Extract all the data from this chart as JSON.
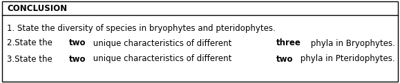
{
  "title": "CONCLUSION",
  "line1_parts": [
    {
      "text": "1. State the diversity of species in bryophytes and pteridophytes.",
      "bold": false
    }
  ],
  "line2_parts": [
    {
      "text": "2.State the ",
      "bold": false
    },
    {
      "text": "two",
      "bold": true
    },
    {
      "text": " unique characteristics of different ",
      "bold": false
    },
    {
      "text": "three",
      "bold": true
    },
    {
      "text": " phyla in Bryophytes.",
      "bold": false
    }
  ],
  "line3_parts": [
    {
      "text": "3.State the ",
      "bold": false
    },
    {
      "text": "two",
      "bold": true
    },
    {
      "text": " unique characteristics of different ",
      "bold": false
    },
    {
      "text": "two",
      "bold": true
    },
    {
      "text": " phyla in Pteridophytes.",
      "bold": false
    }
  ],
  "bg_color": "#ffffff",
  "border_color": "#000000",
  "text_color": "#000000",
  "font_size": 8.5,
  "title_font_size": 8.5
}
